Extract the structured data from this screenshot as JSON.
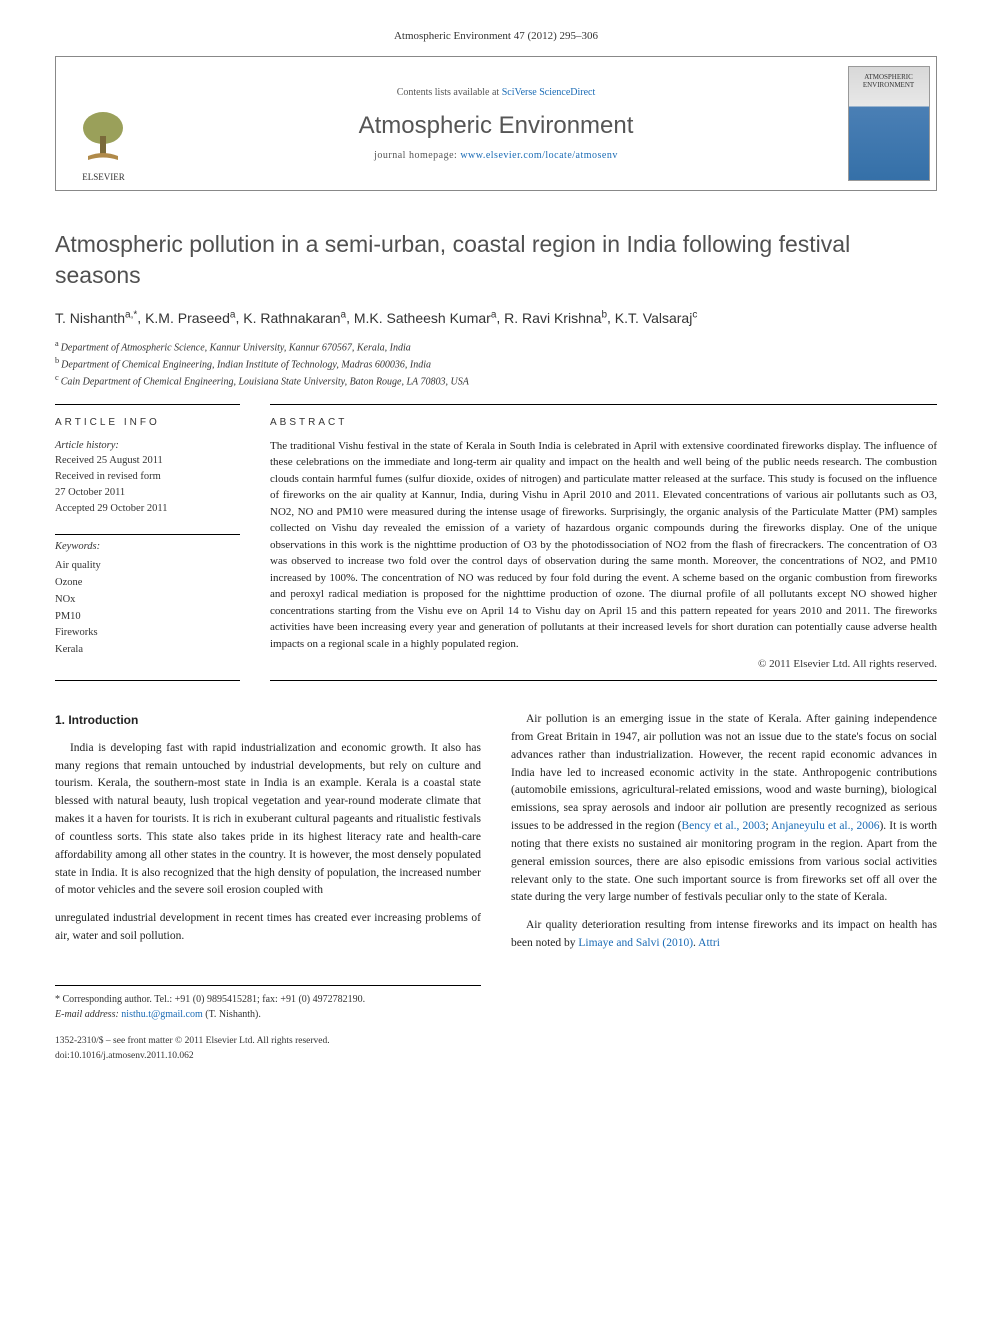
{
  "citation": "Atmospheric Environment 47 (2012) 295–306",
  "header": {
    "contents_prefix": "Contents lists available at ",
    "contents_link": "SciVerse ScienceDirect",
    "journal": "Atmospheric Environment",
    "homepage_prefix": "journal homepage: ",
    "homepage_link": "www.elsevier.com/locate/atmosenv",
    "publisher_logo_text": "ELSEVIER",
    "journal_cover_text": "ATMOSPHERIC ENVIRONMENT"
  },
  "title": "Atmospheric pollution in a semi-urban, coastal region in India following festival seasons",
  "authors": [
    {
      "name": "T. Nishanth",
      "sup": "a,*"
    },
    {
      "name": "K.M. Praseed",
      "sup": "a"
    },
    {
      "name": "K. Rathnakaran",
      "sup": "a"
    },
    {
      "name": "M.K. Satheesh Kumar",
      "sup": "a"
    },
    {
      "name": "R. Ravi Krishna",
      "sup": "b"
    },
    {
      "name": "K.T. Valsaraj",
      "sup": "c"
    }
  ],
  "affiliations": [
    {
      "sup": "a",
      "text": "Department of Atmospheric Science, Kannur University, Kannur 670567, Kerala, India"
    },
    {
      "sup": "b",
      "text": "Department of Chemical Engineering, Indian Institute of Technology, Madras 600036, India"
    },
    {
      "sup": "c",
      "text": "Cain Department of Chemical Engineering, Louisiana State University, Baton Rouge, LA 70803, USA"
    }
  ],
  "article_info": {
    "label": "ARTICLE INFO",
    "history_label": "Article history:",
    "history": [
      "Received 25 August 2011",
      "Received in revised form",
      "27 October 2011",
      "Accepted 29 October 2011"
    ],
    "keywords_label": "Keywords:",
    "keywords": [
      "Air quality",
      "Ozone",
      "NOx",
      "PM10",
      "Fireworks",
      "Kerala"
    ]
  },
  "abstract": {
    "label": "ABSTRACT",
    "text": "The traditional Vishu festival in the state of Kerala in South India is celebrated in April with extensive coordinated fireworks display. The influence of these celebrations on the immediate and long-term air quality and impact on the health and well being of the public needs research. The combustion clouds contain harmful fumes (sulfur dioxide, oxides of nitrogen) and particulate matter released at the surface. This study is focused on the influence of fireworks on the air quality at Kannur, India, during Vishu in April 2010 and 2011. Elevated concentrations of various air pollutants such as O3, NO2, NO and PM10 were measured during the intense usage of fireworks. Surprisingly, the organic analysis of the Particulate Matter (PM) samples collected on Vishu day revealed the emission of a variety of hazardous organic compounds during the fireworks display. One of the unique observations in this work is the nighttime production of O3 by the photodissociation of NO2 from the flash of firecrackers. The concentration of O3 was observed to increase two fold over the control days of observation during the same month. Moreover, the concentrations of NO2, and PM10 increased by 100%. The concentration of NO was reduced by four fold during the event. A scheme based on the organic combustion from fireworks and peroxyl radical mediation is proposed for the nighttime production of ozone. The diurnal profile of all pollutants except NO showed higher concentrations starting from the Vishu eve on April 14 to Vishu day on April 15 and this pattern repeated for years 2010 and 2011. The fireworks activities have been increasing every year and generation of pollutants at their increased levels for short duration can potentially cause adverse health impacts on a regional scale in a highly populated region.",
    "copyright": "© 2011 Elsevier Ltd. All rights reserved."
  },
  "body": {
    "heading": "1. Introduction",
    "p1": "India is developing fast with rapid industrialization and economic growth. It also has many regions that remain untouched by industrial developments, but rely on culture and tourism. Kerala, the southern-most state in India is an example. Kerala is a coastal state blessed with natural beauty, lush tropical vegetation and year-round moderate climate that makes it a haven for tourists. It is rich in exuberant cultural pageants and ritualistic festivals of countless sorts. This state also takes pride in its highest literacy rate and health-care affordability among all other states in the country. It is however, the most densely populated state in India. It is also recognized that the high density of population, the increased number of motor vehicles and the severe soil erosion coupled with",
    "p2": "unregulated industrial development in recent times has created ever increasing problems of air, water and soil pollution.",
    "p3a": "Air pollution is an emerging issue in the state of Kerala. After gaining independence from Great Britain in 1947, air pollution was not an issue due to the state's focus on social advances rather than industrialization. However, the recent rapid economic advances in India have led to increased economic activity in the state. Anthropogenic contributions (automobile emissions, agricultural-related emissions, wood and waste burning), biological emissions, sea spray aerosols and indoor air pollution are presently recognized as serious issues to be addressed in the region (",
    "p3_link1": "Bency et al., 2003",
    "p3b": "; ",
    "p3_link2": "Anjaneyulu et al., 2006",
    "p3c": "). It is worth noting that there exists no sustained air monitoring program in the region. Apart from the general emission sources, there are also episodic emissions from various social activities relevant only to the state. One such important source is from fireworks set off all over the state during the very large number of festivals peculiar only to the state of Kerala.",
    "p4a": "Air quality deterioration resulting from intense fireworks and its impact on health has been noted by ",
    "p4_link1": "Limaye and Salvi (2010)",
    "p4b": ". ",
    "p4_link2": "Attri"
  },
  "footer": {
    "corr_label": "* Corresponding author. Tel.: ",
    "tel": "+91 (0) 9895415281",
    "fax_label": "; fax: ",
    "fax": "+91 (0) 4972782190.",
    "email_label": "E-mail address: ",
    "email": "nisthu.t@gmail.com",
    "email_who": " (T. Nishanth).",
    "issn": "1352-2310/$ – see front matter © 2011 Elsevier Ltd. All rights reserved.",
    "doi": "doi:10.1016/j.atmosenv.2011.10.062"
  },
  "colors": {
    "link": "#1a6bb5",
    "text": "#1a1a1a",
    "journal_grey": "#555555",
    "title_grey": "#505050",
    "rule": "#000000"
  }
}
